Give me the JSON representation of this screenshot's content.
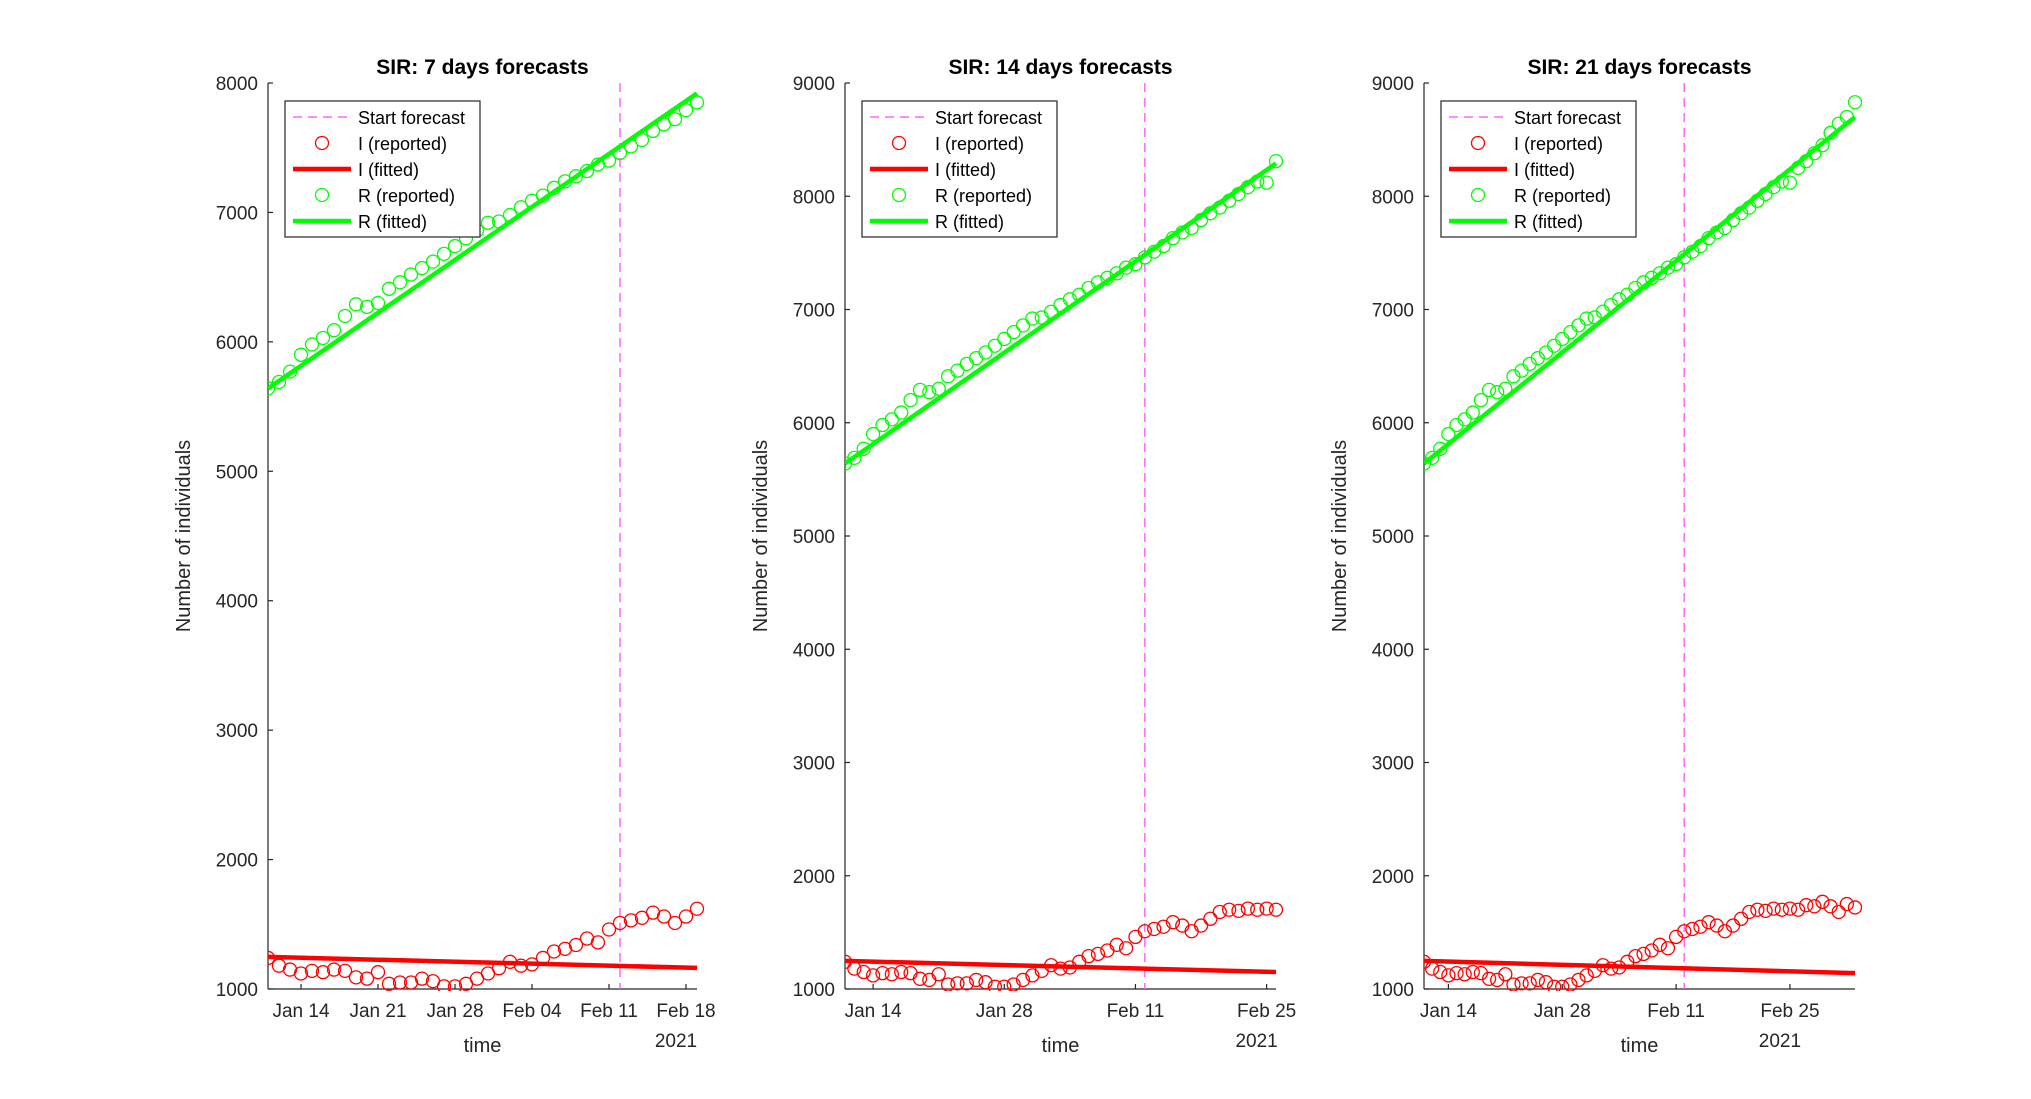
{
  "figure": {
    "background": "#ffffff",
    "legend_entries": [
      {
        "label": "Start forecast",
        "style": "dashed",
        "color": "#ff66ff"
      },
      {
        "label": "I (reported)",
        "style": "marker",
        "color": "#ff0000"
      },
      {
        "label": "I (fitted)",
        "style": "line",
        "color": "#ff0000"
      },
      {
        "label": "R (reported)",
        "style": "marker",
        "color": "#00ff00"
      },
      {
        "label": "R (fitted)",
        "style": "line",
        "color": "#00ff00"
      }
    ]
  },
  "chart_data": [
    {
      "type": "line",
      "title": "SIR: 7 days forecasts",
      "xlabel": "time",
      "ylabel": "Number of individuals",
      "x_secondary_label": "2021",
      "x_domain": [
        "2021-01-11",
        "2021-02-19"
      ],
      "xticks": [
        {
          "date": "2021-01-14",
          "label": "Jan 14"
        },
        {
          "date": "2021-01-21",
          "label": "Jan 21"
        },
        {
          "date": "2021-01-28",
          "label": "Jan 28"
        },
        {
          "date": "2021-02-04",
          "label": "Feb 04"
        },
        {
          "date": "2021-02-11",
          "label": "Feb 11"
        },
        {
          "date": "2021-02-18",
          "label": "Feb 18"
        }
      ],
      "ylim": [
        1000,
        8000
      ],
      "yticks": [
        1000,
        2000,
        3000,
        4000,
        5000,
        6000,
        7000,
        8000
      ],
      "forecast_start": "2021-02-12",
      "legend": "top-left",
      "x_start": "2021-01-11",
      "series": [
        {
          "name": "I (reported)",
          "kind": "markers",
          "color": "#ff0000",
          "values": [
            1240,
            1180,
            1150,
            1120,
            1140,
            1130,
            1150,
            1140,
            1090,
            1080,
            1130,
            1040,
            1050,
            1050,
            1080,
            1060,
            1020,
            1020,
            1040,
            1080,
            1120,
            1160,
            1210,
            1180,
            1190,
            1240,
            1290,
            1310,
            1340,
            1390,
            1360,
            1460,
            1510,
            1530,
            1550,
            1590,
            1560,
            1510,
            1560,
            1620
          ]
        },
        {
          "name": "I (fitted)",
          "kind": "line",
          "color": "#ff0000",
          "points": [
            [
              "2021-01-11",
              1248
            ],
            [
              "2021-02-19",
              1163
            ]
          ]
        },
        {
          "name": "R (reported)",
          "kind": "markers",
          "color": "#00ff00",
          "values": [
            5640,
            5690,
            5770,
            5900,
            5980,
            6030,
            6090,
            6200,
            6290,
            6270,
            6300,
            6410,
            6460,
            6520,
            6570,
            6620,
            6680,
            6740,
            6800,
            6860,
            6920,
            6930,
            6980,
            7040,
            7090,
            7130,
            7190,
            7240,
            7280,
            7320,
            7370,
            7400,
            7460,
            7510,
            7560,
            7630,
            7680,
            7720,
            7790,
            7850
          ]
        },
        {
          "name": "R (fitted)",
          "kind": "line",
          "color": "#00ff00",
          "points": [
            [
              "2021-01-11",
              5640
            ],
            [
              "2021-02-19",
              7920
            ]
          ]
        }
      ]
    },
    {
      "type": "line",
      "title": "SIR: 14 days forecasts",
      "xlabel": "time",
      "ylabel": "Number of individuals",
      "x_secondary_label": "2021",
      "x_domain": [
        "2021-01-11",
        "2021-02-26"
      ],
      "xticks": [
        {
          "date": "2021-01-14",
          "label": "Jan 14"
        },
        {
          "date": "2021-01-28",
          "label": "Jan 28"
        },
        {
          "date": "2021-02-11",
          "label": "Feb 11"
        },
        {
          "date": "2021-02-25",
          "label": "Feb 25"
        }
      ],
      "ylim": [
        1000,
        9000
      ],
      "yticks": [
        1000,
        2000,
        3000,
        4000,
        5000,
        6000,
        7000,
        8000,
        9000
      ],
      "forecast_start": "2021-02-12",
      "legend": "top-left",
      "x_start": "2021-01-11",
      "series": [
        {
          "name": "I (reported)",
          "kind": "markers",
          "color": "#ff0000",
          "values": [
            1240,
            1180,
            1150,
            1120,
            1140,
            1130,
            1150,
            1140,
            1090,
            1080,
            1130,
            1040,
            1050,
            1050,
            1080,
            1060,
            1020,
            1020,
            1040,
            1080,
            1120,
            1160,
            1210,
            1180,
            1190,
            1240,
            1290,
            1310,
            1340,
            1390,
            1360,
            1460,
            1510,
            1530,
            1550,
            1590,
            1560,
            1510,
            1560,
            1620,
            1680,
            1700,
            1690,
            1710,
            1700,
            1710,
            1700
          ]
        },
        {
          "name": "I (fitted)",
          "kind": "line",
          "color": "#ff0000",
          "points": [
            [
              "2021-01-11",
              1248
            ],
            [
              "2021-02-26",
              1150
            ]
          ]
        },
        {
          "name": "R (reported)",
          "kind": "markers",
          "color": "#00ff00",
          "values": [
            5640,
            5690,
            5770,
            5900,
            5980,
            6030,
            6090,
            6200,
            6290,
            6270,
            6300,
            6410,
            6460,
            6520,
            6570,
            6620,
            6680,
            6740,
            6800,
            6860,
            6920,
            6930,
            6980,
            7040,
            7090,
            7130,
            7190,
            7240,
            7280,
            7320,
            7370,
            7400,
            7460,
            7510,
            7560,
            7630,
            7680,
            7720,
            7790,
            7850,
            7900,
            7960,
            8020,
            8080,
            8130,
            8120,
            8310
          ]
        },
        {
          "name": "R (fitted)",
          "kind": "line",
          "color": "#00ff00",
          "points": [
            [
              "2021-01-11",
              5640
            ],
            [
              "2021-02-26",
              8290
            ]
          ]
        }
      ]
    },
    {
      "type": "line",
      "title": "SIR: 21 days forecasts",
      "xlabel": "time",
      "ylabel": "Number of individuals",
      "x_secondary_label": "2021",
      "x_domain": [
        "2021-01-11",
        "2021-03-05"
      ],
      "xticks": [
        {
          "date": "2021-01-14",
          "label": "Jan 14"
        },
        {
          "date": "2021-01-28",
          "label": "Jan 28"
        },
        {
          "date": "2021-02-11",
          "label": "Feb 11"
        },
        {
          "date": "2021-02-25",
          "label": "Feb 25"
        }
      ],
      "ylim": [
        1000,
        9000
      ],
      "yticks": [
        1000,
        2000,
        3000,
        4000,
        5000,
        6000,
        7000,
        8000,
        9000
      ],
      "forecast_start": "2021-02-12",
      "legend": "top-left",
      "x_start": "2021-01-11",
      "series": [
        {
          "name": "I (reported)",
          "kind": "markers",
          "color": "#ff0000",
          "values": [
            1240,
            1180,
            1150,
            1120,
            1140,
            1130,
            1150,
            1140,
            1090,
            1080,
            1130,
            1040,
            1050,
            1050,
            1080,
            1060,
            1020,
            1020,
            1040,
            1080,
            1120,
            1160,
            1210,
            1180,
            1190,
            1240,
            1290,
            1310,
            1340,
            1390,
            1360,
            1460,
            1510,
            1530,
            1550,
            1590,
            1560,
            1510,
            1560,
            1620,
            1680,
            1700,
            1690,
            1710,
            1700,
            1710,
            1700,
            1740,
            1730,
            1770,
            1730,
            1680,
            1750,
            1720
          ]
        },
        {
          "name": "I (fitted)",
          "kind": "line",
          "color": "#ff0000",
          "points": [
            [
              "2021-01-11",
              1248
            ],
            [
              "2021-03-05",
              1140
            ]
          ]
        },
        {
          "name": "R (reported)",
          "kind": "markers",
          "color": "#00ff00",
          "values": [
            5640,
            5690,
            5770,
            5900,
            5980,
            6030,
            6090,
            6200,
            6290,
            6270,
            6300,
            6410,
            6460,
            6520,
            6570,
            6620,
            6680,
            6740,
            6800,
            6860,
            6920,
            6930,
            6980,
            7040,
            7090,
            7130,
            7190,
            7240,
            7280,
            7320,
            7370,
            7400,
            7460,
            7510,
            7560,
            7630,
            7680,
            7720,
            7790,
            7850,
            7900,
            7960,
            8020,
            8080,
            8130,
            8120,
            8250,
            8310,
            8380,
            8450,
            8560,
            8640,
            8700,
            8830
          ]
        },
        {
          "name": "R (fitted)",
          "kind": "line",
          "color": "#00ff00",
          "points": [
            [
              "2021-01-11",
              5640
            ],
            [
              "2021-03-05",
              8700
            ]
          ]
        }
      ]
    }
  ]
}
